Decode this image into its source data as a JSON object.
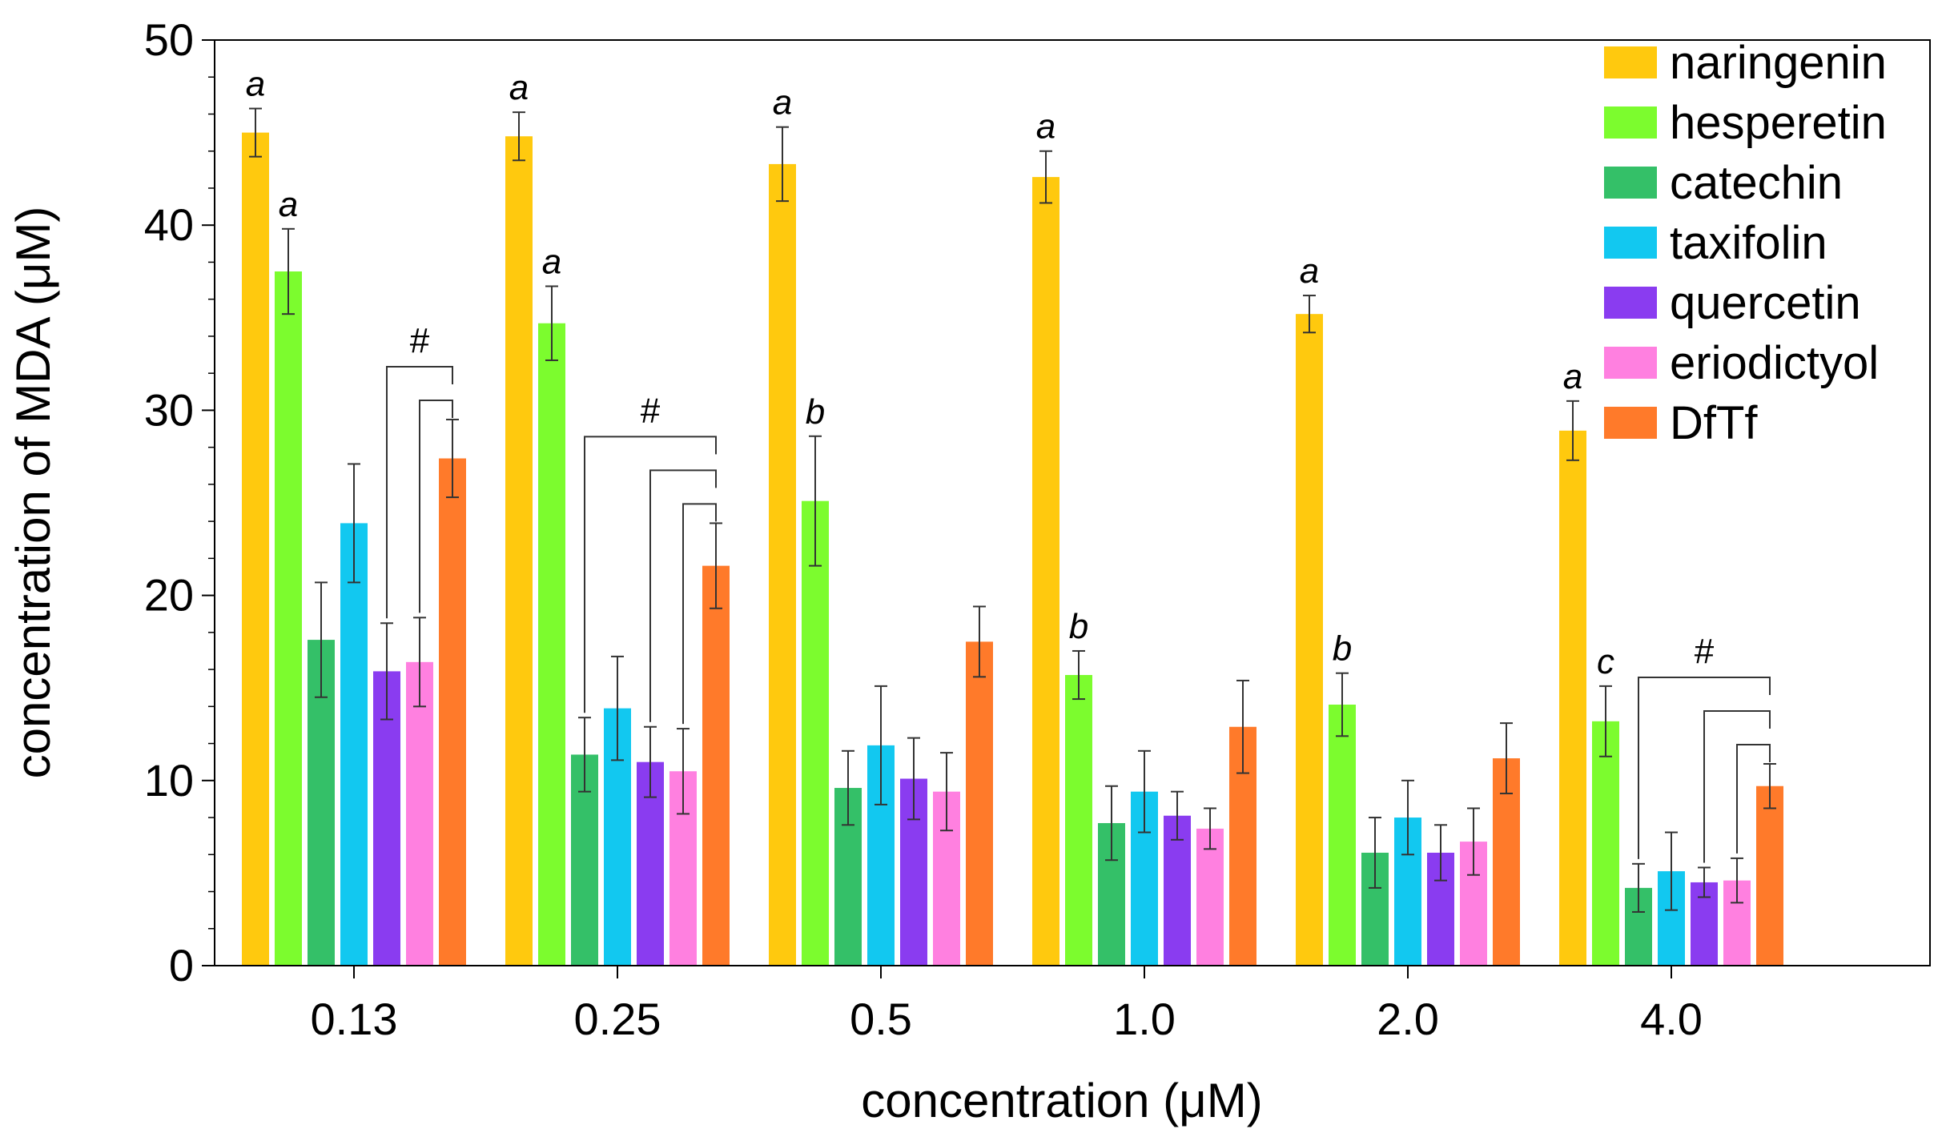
{
  "chart_data": {
    "type": "bar",
    "title": "",
    "xlabel": "concentration (μM)",
    "ylabel": "concentration of MDA (μM)",
    "ylim": [
      0,
      50
    ],
    "yticks": [
      0,
      10,
      20,
      30,
      40,
      50
    ],
    "categories": [
      "0.13",
      "0.25",
      "0.5",
      "1.0",
      "2.0",
      "4.0"
    ],
    "legend_position": "top-right",
    "series": [
      {
        "name": "naringenin",
        "color": "#FFC90E",
        "values": [
          45.0,
          44.8,
          43.3,
          42.6,
          35.2,
          28.9
        ],
        "errors": [
          1.3,
          1.3,
          2.0,
          1.4,
          1.0,
          1.6
        ]
      },
      {
        "name": "hesperetin",
        "color": "#7CFC2E",
        "values": [
          37.5,
          34.7,
          25.1,
          15.7,
          14.1,
          13.2
        ],
        "errors": [
          2.3,
          2.0,
          3.5,
          1.3,
          1.7,
          1.9
        ]
      },
      {
        "name": "catechin",
        "color": "#34C068",
        "values": [
          17.6,
          11.4,
          9.6,
          7.7,
          6.1,
          4.2
        ],
        "errors": [
          3.1,
          2.0,
          2.0,
          2.0,
          1.9,
          1.3
        ]
      },
      {
        "name": "taxifolin",
        "color": "#12C8F0",
        "values": [
          23.9,
          13.9,
          11.9,
          9.4,
          8.0,
          5.1
        ],
        "errors": [
          3.2,
          2.8,
          3.2,
          2.2,
          2.0,
          2.1
        ]
      },
      {
        "name": "quercetin",
        "color": "#8A3CF0",
        "values": [
          15.9,
          11.0,
          10.1,
          8.1,
          6.1,
          4.5
        ],
        "errors": [
          2.6,
          1.9,
          2.2,
          1.3,
          1.5,
          0.8
        ]
      },
      {
        "name": "eriodictyol",
        "color": "#FF80E0",
        "values": [
          16.4,
          10.5,
          9.4,
          7.4,
          6.7,
          4.6
        ],
        "errors": [
          2.4,
          2.3,
          2.1,
          1.1,
          1.8,
          1.2
        ]
      },
      {
        "name": "DfTf",
        "color": "#FF7A2A",
        "values": [
          27.4,
          21.6,
          17.5,
          12.9,
          11.2,
          9.7
        ],
        "errors": [
          2.1,
          2.3,
          1.9,
          2.5,
          1.9,
          1.2
        ]
      }
    ],
    "annotations": {
      "letters": [
        {
          "category": 0,
          "series": 0,
          "text": "a"
        },
        {
          "category": 0,
          "series": 1,
          "text": "a"
        },
        {
          "category": 1,
          "series": 0,
          "text": "a"
        },
        {
          "category": 1,
          "series": 1,
          "text": "a"
        },
        {
          "category": 2,
          "series": 0,
          "text": "a"
        },
        {
          "category": 2,
          "series": 1,
          "text": "b"
        },
        {
          "category": 3,
          "series": 0,
          "text": "a"
        },
        {
          "category": 3,
          "series": 1,
          "text": "b"
        },
        {
          "category": 4,
          "series": 0,
          "text": "a"
        },
        {
          "category": 4,
          "series": 1,
          "text": "b"
        },
        {
          "category": 5,
          "series": 0,
          "text": "a"
        },
        {
          "category": 5,
          "series": 1,
          "text": "c"
        }
      ],
      "brackets": [
        {
          "category": 0,
          "symbol": "#",
          "from_series": [
            4,
            5
          ],
          "to_series": 6
        },
        {
          "category": 1,
          "symbol": "#",
          "from_series": [
            2,
            4,
            5
          ],
          "to_series": 6
        },
        {
          "category": 5,
          "symbol": "#",
          "from_series": [
            2,
            4,
            5
          ],
          "to_series": 6
        }
      ]
    }
  }
}
